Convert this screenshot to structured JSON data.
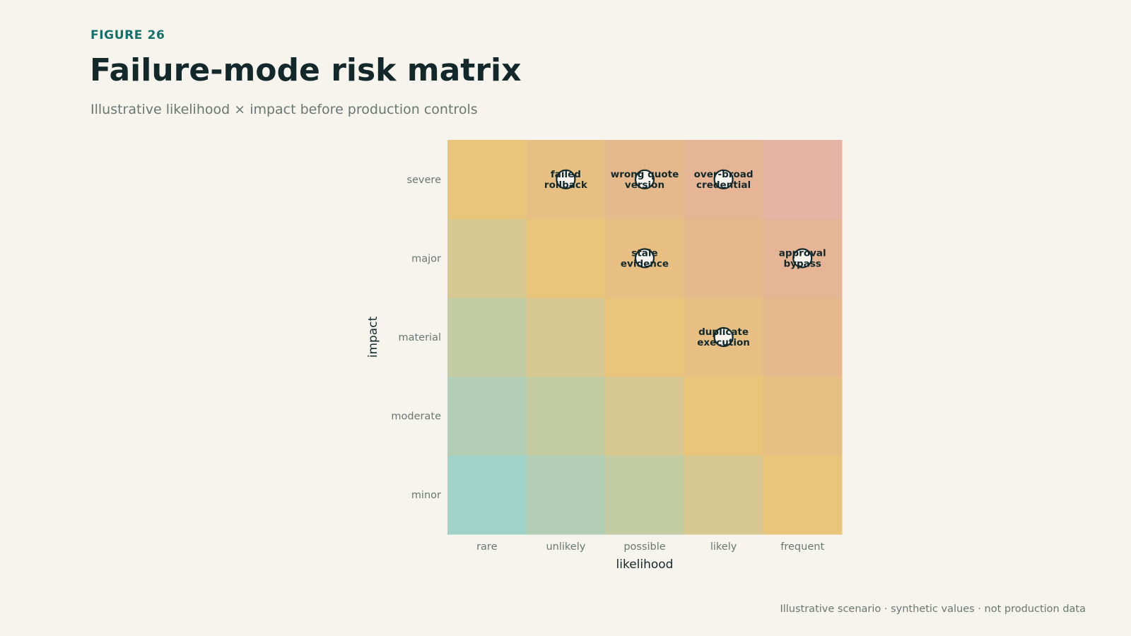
{
  "header": {
    "eyebrow": "FIGURE 26",
    "title": "Failure-mode risk matrix",
    "subtitle": "Illustrative likelihood × impact before production controls"
  },
  "footer": {
    "note": "Illustrative scenario · synthetic values · not production data"
  },
  "colors": {
    "background": "#f6f4ed",
    "accent": "#12706a",
    "ink": "#13282b",
    "muted": "#687773",
    "marker_fill": "#f6f4ed",
    "cell_scale": [
      "#9fd3ca",
      "#b2cfb6",
      "#c4cca3",
      "#d6c890",
      "#e8c57b",
      "#e7bf83",
      "#e6b98c",
      "#e6b595",
      "#e6b3a4"
    ]
  },
  "chart_data": {
    "type": "heatmap",
    "xlabel": "likelihood",
    "ylabel": "impact",
    "x_categories": [
      "rare",
      "unlikely",
      "possible",
      "likely",
      "frequent"
    ],
    "y_categories": [
      "minor",
      "moderate",
      "material",
      "major",
      "severe"
    ],
    "cell_score": "likelihood index + impact index (0–8)",
    "grid": false,
    "legend": "none",
    "points": [
      {
        "label": "failed rollback",
        "likelihood": "unlikely",
        "impact": "severe"
      },
      {
        "label": "wrong quote version",
        "likelihood": "possible",
        "impact": "severe"
      },
      {
        "label": "over-broad credential",
        "likelihood": "likely",
        "impact": "severe"
      },
      {
        "label": "stale evidence",
        "likelihood": "possible",
        "impact": "major"
      },
      {
        "label": "approval bypass",
        "likelihood": "frequent",
        "impact": "major"
      },
      {
        "label": "duplicate execution",
        "likelihood": "likely",
        "impact": "material"
      }
    ]
  }
}
